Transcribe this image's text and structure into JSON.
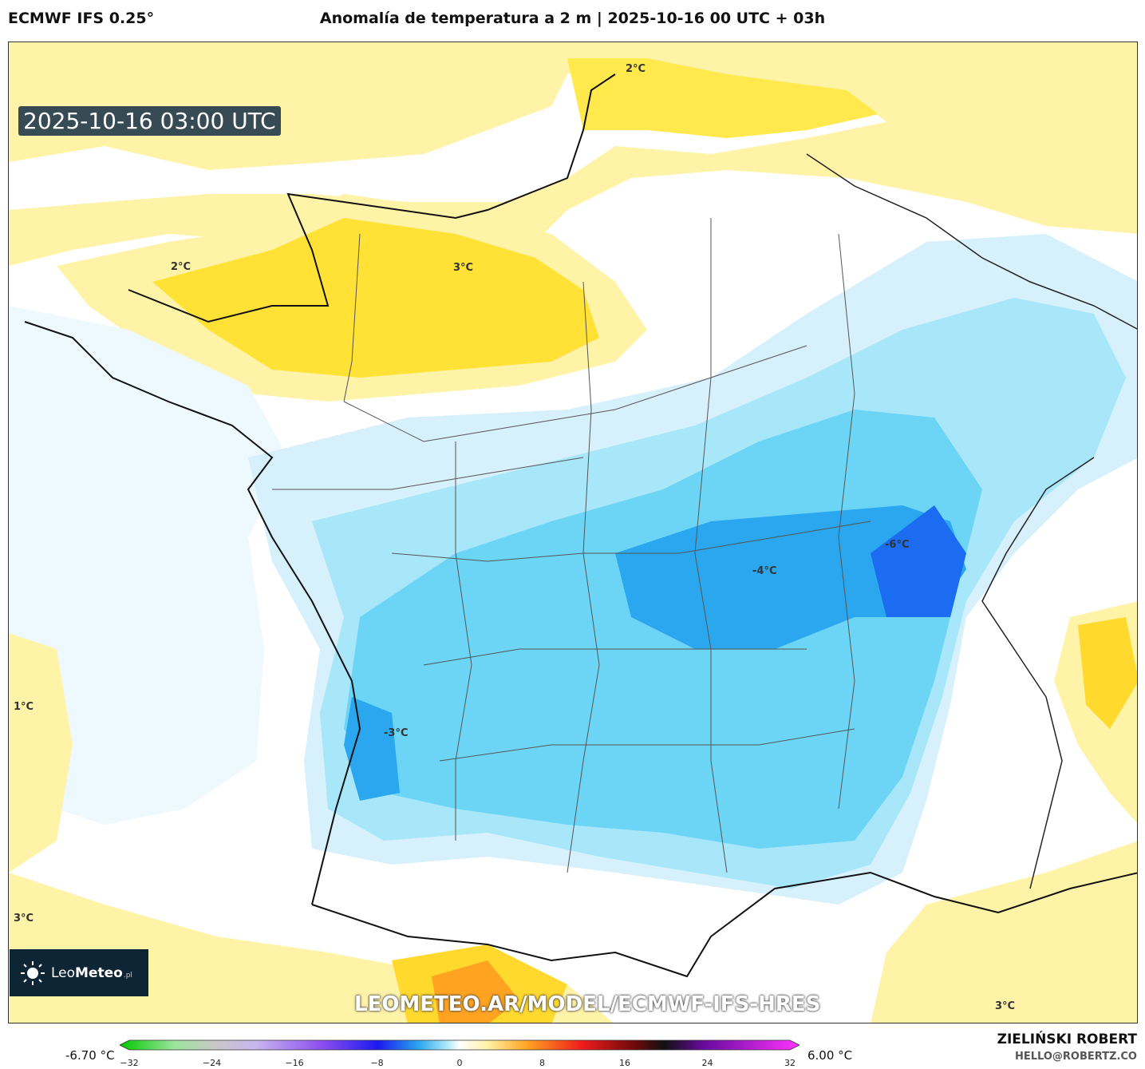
{
  "header": {
    "model": "ECMWF IFS 0.25°",
    "title": "Anomalía de temperatura a 2 m | 2025-10-16 00 UTC + 03h"
  },
  "map": {
    "valid_time": "2025-10-16 03:00 UTC",
    "contour_labels": [
      {
        "text": "2°C"
      },
      {
        "text": "2°C"
      },
      {
        "text": "3°C"
      },
      {
        "text": "1°C"
      },
      {
        "text": "-3°C"
      },
      {
        "text": "-4°C"
      },
      {
        "text": "-6°C"
      },
      {
        "text": "3°C"
      },
      {
        "text": "3°C"
      }
    ],
    "watermark_url": "LEOMETEO.AR/MODEL/ECMWF-IFS-HRES",
    "logo": {
      "brand_light": "Leo",
      "brand_bold": "Meteo",
      "suffix": ".pl",
      "icon": "sun-icon"
    },
    "colors": {
      "warm_light": "#fff3a8",
      "warm": "#ffd92e",
      "cold_light": "#e6f6ff",
      "cold": "#6cd5f5",
      "cold_strong": "#2aa7ef",
      "cold_max": "#1b6cf0"
    }
  },
  "legend": {
    "min_value": "-6.70 °C",
    "max_value": "6.00 °C",
    "ticks": [
      "−32",
      "−24",
      "−16",
      "−8",
      "0",
      "8",
      "16",
      "24",
      "32"
    ],
    "range": [
      -32,
      32
    ]
  },
  "credits": {
    "author": "ZIELIŃSKI ROBERT",
    "email": "HELLO@ROBERTZ.CO"
  }
}
